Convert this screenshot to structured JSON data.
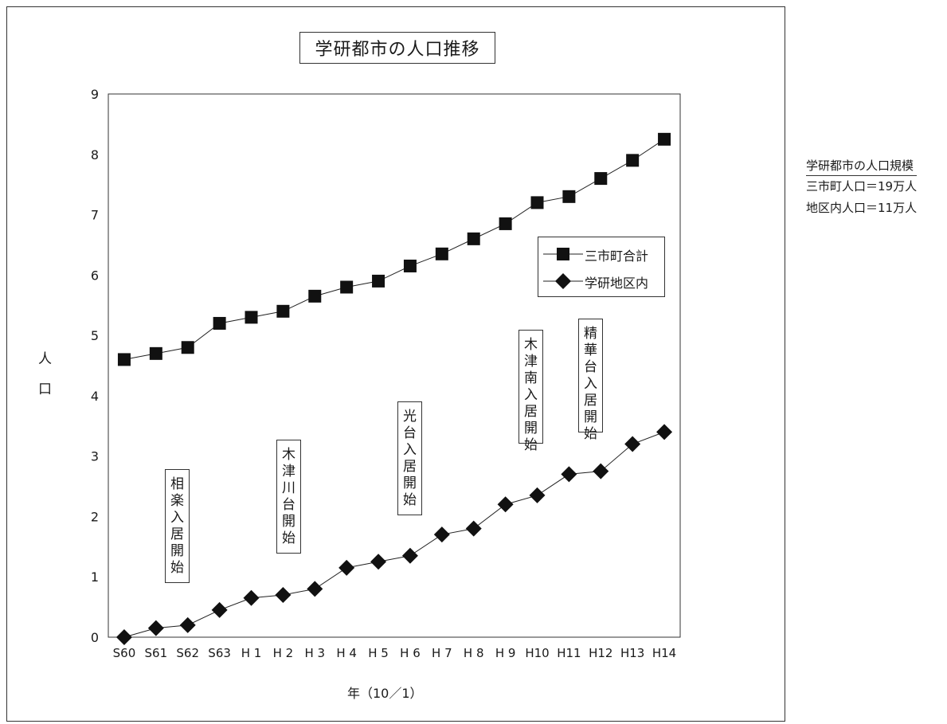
{
  "chart_data": {
    "type": "line",
    "title": "学研都市の人口推移",
    "xlabel": "年（10／1）",
    "ylabel": "人口",
    "ylim": [
      0,
      9
    ],
    "yticks": [
      0,
      1,
      2,
      3,
      4,
      5,
      6,
      7,
      8,
      9
    ],
    "grid": true,
    "legend_position": "right",
    "categories": [
      "S60",
      "S61",
      "S62",
      "S63",
      "H 1",
      "H 2",
      "H 3",
      "H 4",
      "H 5",
      "H 6",
      "H 7",
      "H 8",
      "H 9",
      "H10",
      "H11",
      "H12",
      "H13",
      "H14"
    ],
    "series": [
      {
        "name": "三市町合計",
        "marker": "square",
        "values": [
          4.6,
          4.7,
          4.8,
          5.2,
          5.3,
          5.4,
          5.65,
          5.8,
          5.9,
          6.15,
          6.35,
          6.6,
          6.85,
          7.2,
          7.3,
          7.6,
          7.9,
          8.25
        ]
      },
      {
        "name": "学研地区内",
        "marker": "diamond",
        "values": [
          0,
          0.15,
          0.2,
          0.45,
          0.65,
          0.7,
          0.8,
          1.15,
          1.25,
          1.35,
          1.7,
          1.8,
          2.2,
          2.35,
          2.7,
          2.75,
          3.2,
          3.4
        ]
      }
    ],
    "annotations": [
      {
        "text": "相楽入居開始"
      },
      {
        "text": "木津川台開始"
      },
      {
        "text": "光台入居開始"
      },
      {
        "text": "木津南入居開始"
      },
      {
        "text": "精華台入居開始"
      }
    ]
  },
  "side_note": {
    "heading": "学研都市の人口規模",
    "lines": [
      "三市町人口＝19万人",
      "地区内人口＝11万人"
    ]
  }
}
